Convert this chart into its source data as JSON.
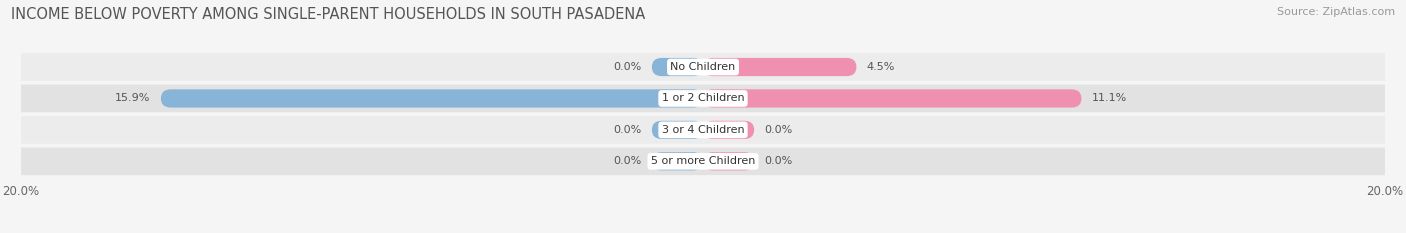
{
  "title": "INCOME BELOW POVERTY AMONG SINGLE-PARENT HOUSEHOLDS IN SOUTH PASADENA",
  "source": "Source: ZipAtlas.com",
  "categories": [
    "No Children",
    "1 or 2 Children",
    "3 or 4 Children",
    "5 or more Children"
  ],
  "single_father": [
    0.0,
    15.9,
    0.0,
    0.0
  ],
  "single_mother": [
    4.5,
    11.1,
    0.0,
    0.0
  ],
  "father_color": "#88b4d8",
  "mother_color": "#f090b0",
  "xlim": 20.0,
  "stub_size": 1.5,
  "background_color": "#f5f5f5",
  "row_colors": [
    "#ececec",
    "#e2e2e2"
  ],
  "title_fontsize": 10.5,
  "source_fontsize": 8,
  "tick_fontsize": 8.5,
  "label_fontsize": 8,
  "cat_fontsize": 8
}
